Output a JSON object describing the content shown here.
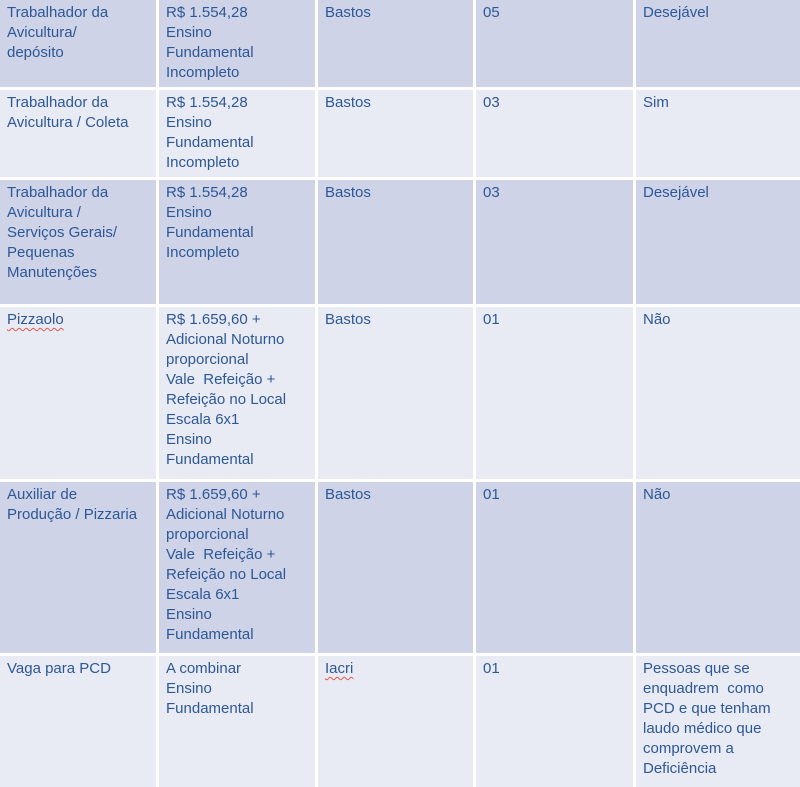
{
  "colors": {
    "row_dark_background": "#ced3e8",
    "row_light_background": "#e9ebf4",
    "cell_border": "#ffffff",
    "text": "#2d5795",
    "spellcheck_squiggle": "#e1584c"
  },
  "table": {
    "rows": [
      {
        "role": "Trabalhador da\nAvicultura/\ndepósito",
        "pay_education": "R$ 1.554,28\nEnsino\nFundamental\nIncompleto",
        "city": "Bastos",
        "openings": "05",
        "experience": "Desejável"
      },
      {
        "role": "Trabalhador da\nAvicultura / Coleta",
        "pay_education": "R$ 1.554,28\nEnsino\nFundamental\nIncompleto",
        "city": "Bastos",
        "openings": "03",
        "experience": "Sim"
      },
      {
        "role": "Trabalhador da\nAvicultura /\nServiços Gerais/\nPequenas\nManutenções",
        "pay_education": "R$ 1.554,28\nEnsino\nFundamental\nIncompleto",
        "city": "Bastos",
        "openings": "03",
        "experience": "Desejável"
      },
      {
        "role": "Pizzaolo",
        "pay_education": "R$ 1.659,60 +\nAdicional Noturno\nproporcional\nVale  Refeição +\nRefeição no Local\nEscala 6x1\nEnsino\nFundamental",
        "city": "Bastos",
        "openings": "01",
        "experience": "Não"
      },
      {
        "role": "Auxiliar de\nProdução / Pizzaria",
        "pay_education": "R$ 1.659,60 +\nAdicional Noturno\nproporcional\nVale  Refeição +\nRefeição no Local\nEscala 6x1\nEnsino\nFundamental",
        "city": "Bastos",
        "openings": "01",
        "experience": "Não"
      },
      {
        "role": "Vaga para PCD",
        "pay_education": "A combinar\nEnsino\nFundamental",
        "city": "Iacri",
        "openings": "01",
        "experience": "Pessoas que se\nenquadrem  como\nPCD e que tenham\nlaudo médico que\ncomprovem a\nDeficiência"
      }
    ]
  }
}
